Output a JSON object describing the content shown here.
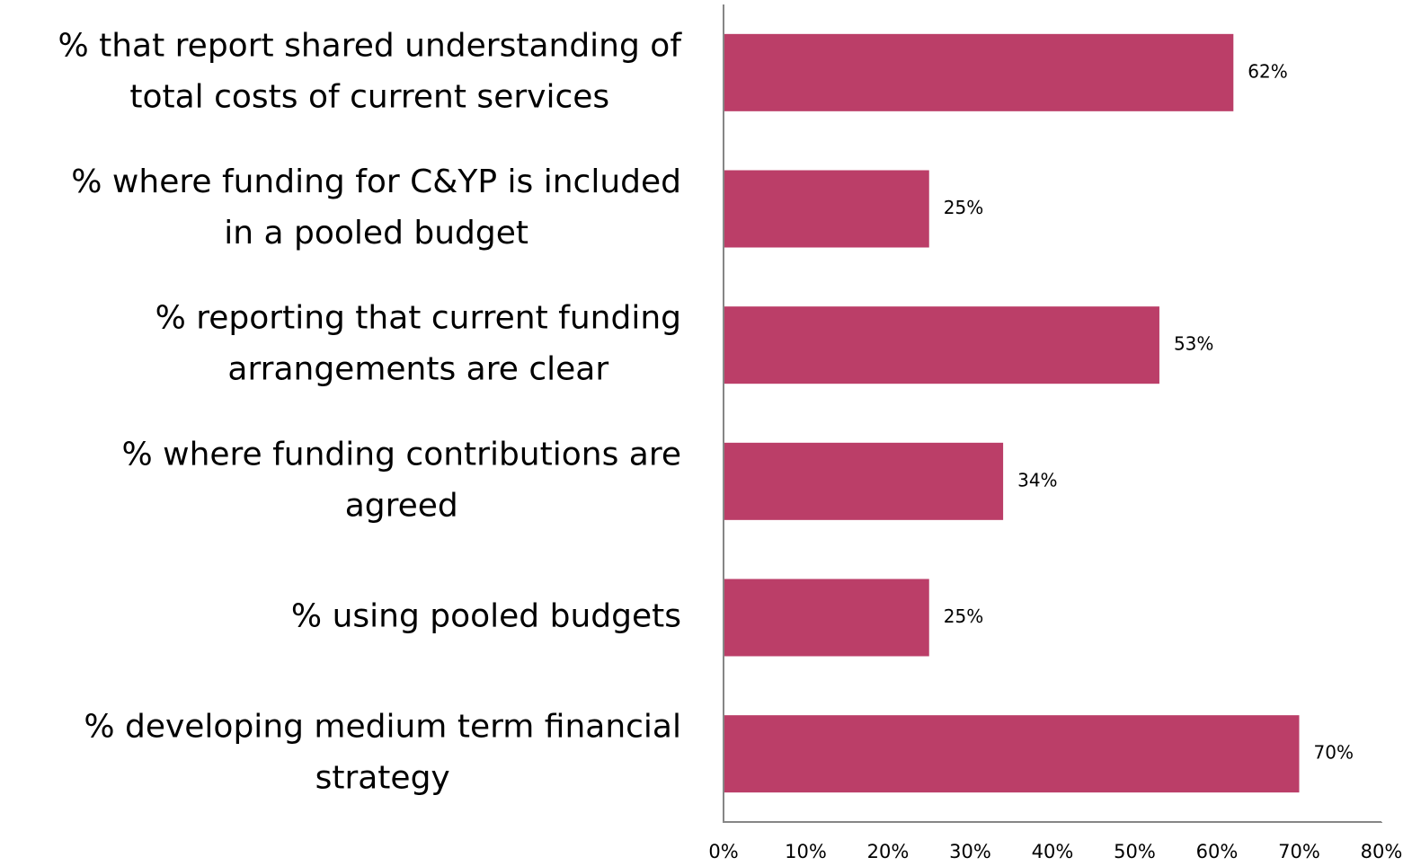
{
  "chart_data": {
    "type": "barh",
    "categories": [
      [
        "% that report shared understanding of",
        "total costs of current services"
      ],
      [
        "% where funding for C&YP is included",
        "in a pooled budget"
      ],
      [
        "% reporting that current funding",
        "arrangements are clear"
      ],
      [
        "% where funding contributions are",
        "agreed"
      ],
      [
        "% using pooled budgets"
      ],
      [
        "% developing medium term financial",
        "strategy"
      ]
    ],
    "values": [
      62,
      25,
      53,
      34,
      25,
      70
    ],
    "value_labels": [
      "62%",
      "25%",
      "53%",
      "34%",
      "25%",
      "70%"
    ],
    "color": "#bb3e68",
    "xlim": [
      0,
      80
    ],
    "xticks": [
      {
        "value": 0,
        "label": "0%"
      },
      {
        "value": 10,
        "label": "10%"
      },
      {
        "value": 20,
        "label": "20%"
      },
      {
        "value": 30,
        "label": "30%"
      },
      {
        "value": 40,
        "label": "40%"
      },
      {
        "value": 50,
        "label": "50%"
      },
      {
        "value": 60,
        "label": "60%"
      },
      {
        "value": 70,
        "label": "70%"
      },
      {
        "value": 80,
        "label": "80%"
      }
    ],
    "grid": false
  }
}
